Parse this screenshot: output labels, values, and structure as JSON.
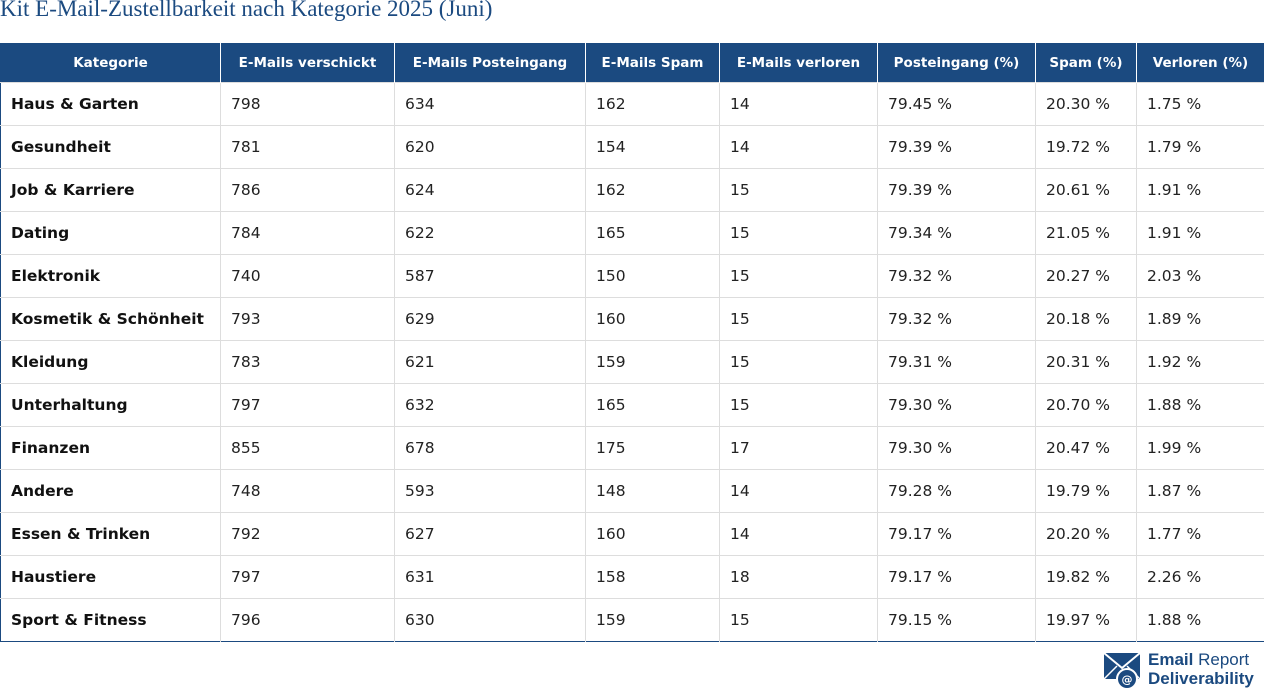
{
  "title": "Kit E-Mail-Zustellbarkeit nach Kategorie 2025 (Juni)",
  "columns": [
    "Kategorie",
    "E-Mails verschickt",
    "E-Mails Posteingang",
    "E-Mails Spam",
    "E-Mails verloren",
    "Posteingang (%)",
    "Spam (%)",
    "Verloren (%)"
  ],
  "rows": [
    [
      "Haus & Garten",
      "798",
      "634",
      "162",
      "14",
      "79.45 %",
      "20.30 %",
      "1.75 %"
    ],
    [
      "Gesundheit",
      "781",
      "620",
      "154",
      "14",
      "79.39 %",
      "19.72 %",
      "1.79 %"
    ],
    [
      "Job & Karriere",
      "786",
      "624",
      "162",
      "15",
      "79.39 %",
      "20.61 %",
      "1.91 %"
    ],
    [
      "Dating",
      "784",
      "622",
      "165",
      "15",
      "79.34 %",
      "21.05 %",
      "1.91 %"
    ],
    [
      "Elektronik",
      "740",
      "587",
      "150",
      "15",
      "79.32 %",
      "20.27 %",
      "2.03 %"
    ],
    [
      "Kosmetik & Schönheit",
      "793",
      "629",
      "160",
      "15",
      "79.32 %",
      "20.18 %",
      "1.89 %"
    ],
    [
      "Kleidung",
      "783",
      "621",
      "159",
      "15",
      "79.31 %",
      "20.31 %",
      "1.92 %"
    ],
    [
      "Unterhaltung",
      "797",
      "632",
      "165",
      "15",
      "79.30 %",
      "20.70 %",
      "1.88 %"
    ],
    [
      "Finanzen",
      "855",
      "678",
      "175",
      "17",
      "79.30 %",
      "20.47 %",
      "1.99 %"
    ],
    [
      "Andere",
      "748",
      "593",
      "148",
      "14",
      "79.28 %",
      "19.79 %",
      "1.87 %"
    ],
    [
      "Essen & Trinken",
      "792",
      "627",
      "160",
      "14",
      "79.17 %",
      "20.20 %",
      "1.77 %"
    ],
    [
      "Haustiere",
      "797",
      "631",
      "158",
      "18",
      "79.17 %",
      "19.82 %",
      "2.26 %"
    ],
    [
      "Sport & Fitness",
      "796",
      "630",
      "159",
      "15",
      "79.15 %",
      "19.97 %",
      "1.88 %"
    ]
  ],
  "logo": {
    "icon": "envelope-at-icon",
    "line1_bold": "Email",
    "line1_light": "Report",
    "line2": "Deliverability"
  },
  "colors": {
    "header_bg": "#1b4a80",
    "title": "#1b4a80",
    "grid": "#dddddd"
  }
}
